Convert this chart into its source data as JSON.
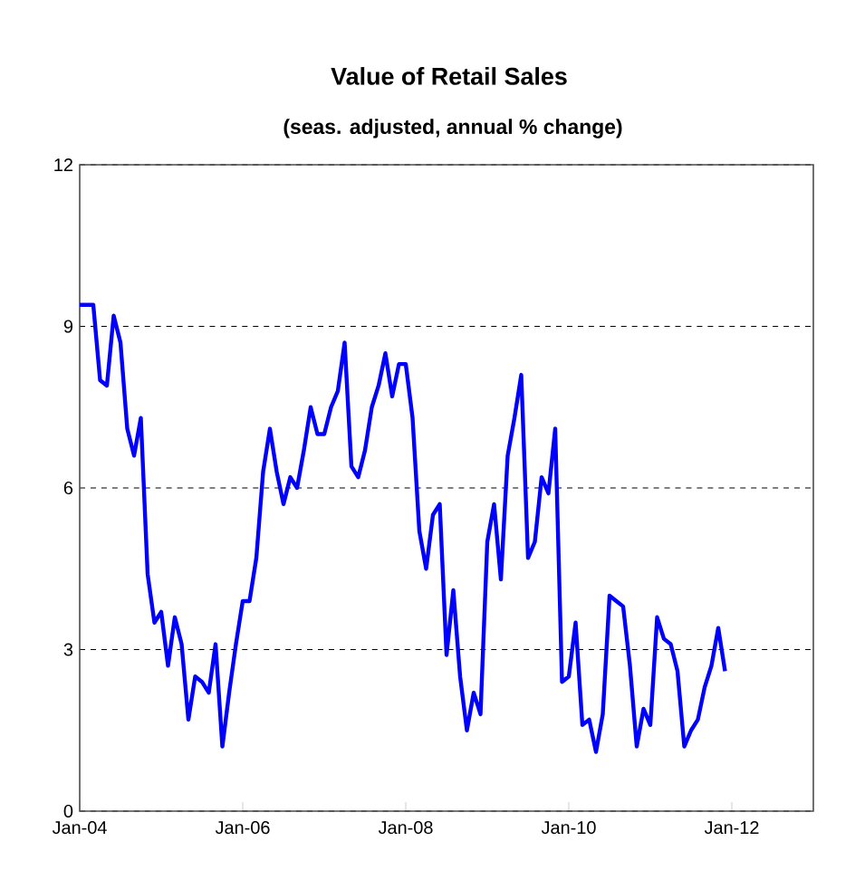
{
  "chart_data": {
    "type": "line",
    "title": "Value of Retail Sales",
    "subtitle": "(seas. adjusted, annual % change)",
    "x": [
      "2004-01",
      "2004-02",
      "2004-03",
      "2004-04",
      "2004-05",
      "2004-06",
      "2004-07",
      "2004-08",
      "2004-09",
      "2004-10",
      "2004-11",
      "2004-12",
      "2005-01",
      "2005-02",
      "2005-03",
      "2005-04",
      "2005-05",
      "2005-06",
      "2005-07",
      "2005-08",
      "2005-09",
      "2005-10",
      "2005-11",
      "2005-12",
      "2006-01",
      "2006-02",
      "2006-03",
      "2006-04",
      "2006-05",
      "2006-06",
      "2006-07",
      "2006-08",
      "2006-09",
      "2006-10",
      "2006-11",
      "2006-12",
      "2007-01",
      "2007-02",
      "2007-03",
      "2007-04",
      "2007-05",
      "2007-06",
      "2007-07",
      "2007-08",
      "2007-09",
      "2007-10",
      "2007-11",
      "2007-12",
      "2008-01",
      "2008-02",
      "2008-03",
      "2008-04",
      "2008-05",
      "2008-06",
      "2008-07",
      "2008-08",
      "2008-09",
      "2008-10",
      "2008-11",
      "2008-12",
      "2009-01",
      "2009-02",
      "2009-03",
      "2009-04",
      "2009-05",
      "2009-06",
      "2009-07",
      "2009-08",
      "2009-09",
      "2009-10",
      "2009-11",
      "2009-12",
      "2010-01",
      "2010-02",
      "2010-03",
      "2010-04",
      "2010-05",
      "2010-06",
      "2010-07",
      "2010-08",
      "2010-09",
      "2010-10",
      "2010-11",
      "2010-12",
      "2011-01",
      "2011-02",
      "2011-03",
      "2011-04",
      "2011-05",
      "2011-06",
      "2011-07",
      "2011-08",
      "2011-09",
      "2011-10",
      "2011-11",
      "2011-12"
    ],
    "values": [
      9.4,
      9.4,
      9.4,
      8.0,
      7.9,
      9.2,
      8.7,
      7.1,
      6.6,
      7.3,
      4.4,
      3.5,
      3.7,
      2.7,
      3.6,
      3.1,
      1.7,
      2.5,
      2.4,
      2.2,
      3.1,
      1.2,
      2.2,
      3.1,
      3.9,
      3.9,
      4.7,
      6.3,
      7.1,
      6.3,
      5.7,
      6.2,
      6.0,
      6.7,
      7.5,
      7.0,
      7.0,
      7.5,
      7.8,
      8.7,
      6.4,
      6.2,
      6.7,
      7.5,
      7.9,
      8.5,
      7.7,
      8.3,
      8.3,
      7.3,
      5.2,
      4.5,
      5.5,
      5.7,
      2.9,
      4.1,
      2.5,
      1.5,
      2.2,
      1.8,
      5.0,
      5.7,
      4.3,
      6.6,
      7.3,
      8.1,
      4.7,
      5.0,
      6.2,
      5.9,
      7.1,
      2.4,
      2.5,
      3.5,
      1.6,
      1.7,
      1.1,
      1.8,
      4.0,
      3.9,
      3.8,
      2.7,
      1.2,
      1.9,
      1.6,
      3.6,
      3.2,
      3.1,
      2.6,
      1.2,
      1.5,
      1.7,
      2.3,
      2.7,
      3.4,
      2.6
    ],
    "color": "#0000ff",
    "line_style": "solid",
    "xlim": [
      "2004-01",
      "2013-01"
    ],
    "xticks": [
      {
        "value": "2004-01",
        "label": "Jan-04"
      },
      {
        "value": "2006-01",
        "label": "Jan-06"
      },
      {
        "value": "2008-01",
        "label": "Jan-08"
      },
      {
        "value": "2010-01",
        "label": "Jan-10"
      },
      {
        "value": "2012-01",
        "label": "Jan-12"
      }
    ],
    "ylim": [
      0,
      12
    ],
    "yticks": [
      0,
      3,
      6,
      9,
      12
    ],
    "grid": "y"
  }
}
